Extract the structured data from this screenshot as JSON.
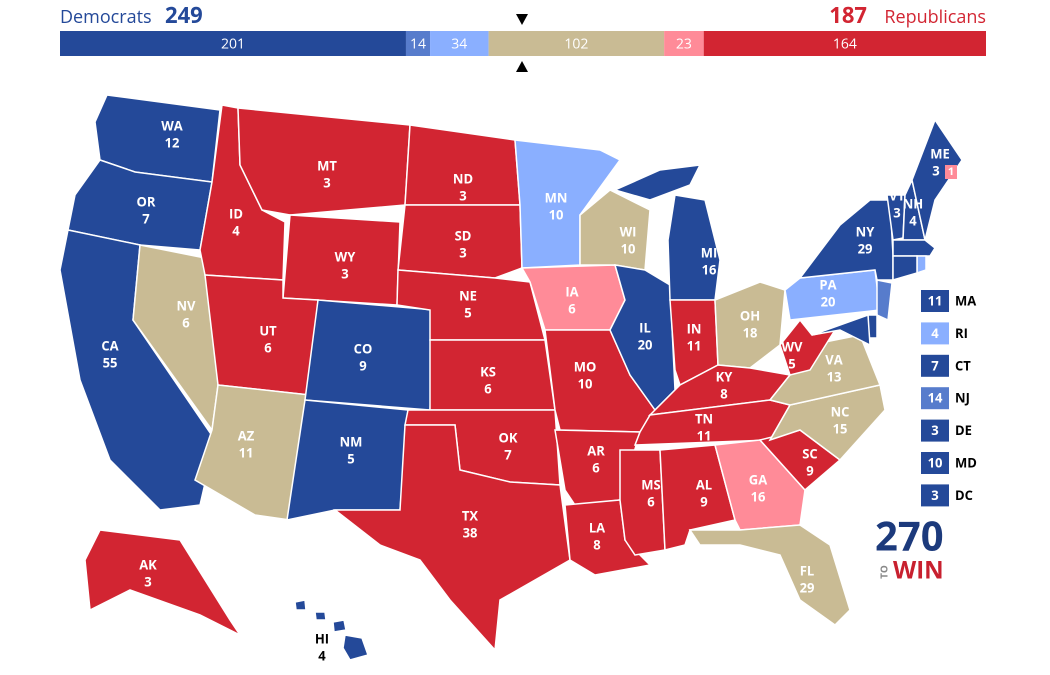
{
  "header": {
    "dem_label": "Democrats",
    "dem_total": 249,
    "rep_total": 187,
    "rep_label": "Republicans",
    "dem_color": "#244999",
    "rep_color": "#d22532"
  },
  "bar": [
    {
      "value": 201,
      "color": "#244999"
    },
    {
      "value": 14,
      "color": "#577ccc"
    },
    {
      "value": 34,
      "color": "#8aafff"
    },
    {
      "value": 102,
      "color": "#c9bb94"
    },
    {
      "value": 23,
      "color": "#ff8b98"
    },
    {
      "value": 164,
      "color": "#d22532"
    }
  ],
  "states": [
    {
      "abbr": "WA",
      "ev": 12,
      "color": "#244999"
    },
    {
      "abbr": "OR",
      "ev": 7,
      "color": "#244999"
    },
    {
      "abbr": "CA",
      "ev": 55,
      "color": "#244999"
    },
    {
      "abbr": "NV",
      "ev": 6,
      "color": "#c9bb94"
    },
    {
      "abbr": "ID",
      "ev": 4,
      "color": "#d22532"
    },
    {
      "abbr": "MT",
      "ev": 3,
      "color": "#d22532"
    },
    {
      "abbr": "WY",
      "ev": 3,
      "color": "#d22532"
    },
    {
      "abbr": "UT",
      "ev": 6,
      "color": "#d22532"
    },
    {
      "abbr": "AZ",
      "ev": 11,
      "color": "#c9bb94"
    },
    {
      "abbr": "CO",
      "ev": 9,
      "color": "#244999"
    },
    {
      "abbr": "NM",
      "ev": 5,
      "color": "#244999"
    },
    {
      "abbr": "ND",
      "ev": 3,
      "color": "#d22532"
    },
    {
      "abbr": "SD",
      "ev": 3,
      "color": "#d22532"
    },
    {
      "abbr": "NE",
      "ev": 5,
      "color": "#d22532"
    },
    {
      "abbr": "KS",
      "ev": 6,
      "color": "#d22532"
    },
    {
      "abbr": "OK",
      "ev": 7,
      "color": "#d22532"
    },
    {
      "abbr": "TX",
      "ev": 38,
      "color": "#d22532"
    },
    {
      "abbr": "MN",
      "ev": 10,
      "color": "#8aafff"
    },
    {
      "abbr": "IA",
      "ev": 6,
      "color": "#ff8b98"
    },
    {
      "abbr": "MO",
      "ev": 10,
      "color": "#d22532"
    },
    {
      "abbr": "AR",
      "ev": 6,
      "color": "#d22532"
    },
    {
      "abbr": "LA",
      "ev": 8,
      "color": "#d22532"
    },
    {
      "abbr": "WI",
      "ev": 10,
      "color": "#c9bb94"
    },
    {
      "abbr": "IL",
      "ev": 20,
      "color": "#244999"
    },
    {
      "abbr": "MI",
      "ev": 16,
      "color": "#244999"
    },
    {
      "abbr": "IN",
      "ev": 11,
      "color": "#d22532"
    },
    {
      "abbr": "OH",
      "ev": 18,
      "color": "#c9bb94"
    },
    {
      "abbr": "KY",
      "ev": 8,
      "color": "#d22532"
    },
    {
      "abbr": "TN",
      "ev": 11,
      "color": "#d22532"
    },
    {
      "abbr": "MS",
      "ev": 6,
      "color": "#d22532"
    },
    {
      "abbr": "AL",
      "ev": 9,
      "color": "#d22532"
    },
    {
      "abbr": "GA",
      "ev": 16,
      "color": "#ff8b98"
    },
    {
      "abbr": "FL",
      "ev": 29,
      "color": "#c9bb94"
    },
    {
      "abbr": "SC",
      "ev": 9,
      "color": "#d22532"
    },
    {
      "abbr": "NC",
      "ev": 15,
      "color": "#c9bb94"
    },
    {
      "abbr": "VA",
      "ev": 13,
      "color": "#c9bb94"
    },
    {
      "abbr": "WV",
      "ev": 5,
      "color": "#d22532"
    },
    {
      "abbr": "PA",
      "ev": 20,
      "color": "#8aafff"
    },
    {
      "abbr": "NY",
      "ev": 29,
      "color": "#244999"
    },
    {
      "abbr": "VT",
      "ev": 3,
      "color": "#244999"
    },
    {
      "abbr": "NH",
      "ev": 4,
      "color": "#244999"
    },
    {
      "abbr": "ME",
      "ev": 3,
      "color": "#244999",
      "district": {
        "ev": 1,
        "color": "#ff8b98"
      }
    },
    {
      "abbr": "MA",
      "ev": 11,
      "color": "#244999"
    },
    {
      "abbr": "RI",
      "ev": 4,
      "color": "#8aafff"
    },
    {
      "abbr": "CT",
      "ev": 7,
      "color": "#244999"
    },
    {
      "abbr": "NJ",
      "ev": 14,
      "color": "#577ccc"
    },
    {
      "abbr": "DE",
      "ev": 3,
      "color": "#244999"
    },
    {
      "abbr": "MD",
      "ev": 10,
      "color": "#244999"
    },
    {
      "abbr": "DC",
      "ev": 3,
      "color": "#244999"
    },
    {
      "abbr": "AK",
      "ev": 3,
      "color": "#d22532"
    },
    {
      "abbr": "HI",
      "ev": 4,
      "color": "#244999"
    }
  ],
  "callouts": [
    "MA",
    "RI",
    "CT",
    "NJ",
    "DE",
    "MD",
    "DC"
  ],
  "logo": {
    "number": "270",
    "to": "TO",
    "win": "WIN"
  }
}
